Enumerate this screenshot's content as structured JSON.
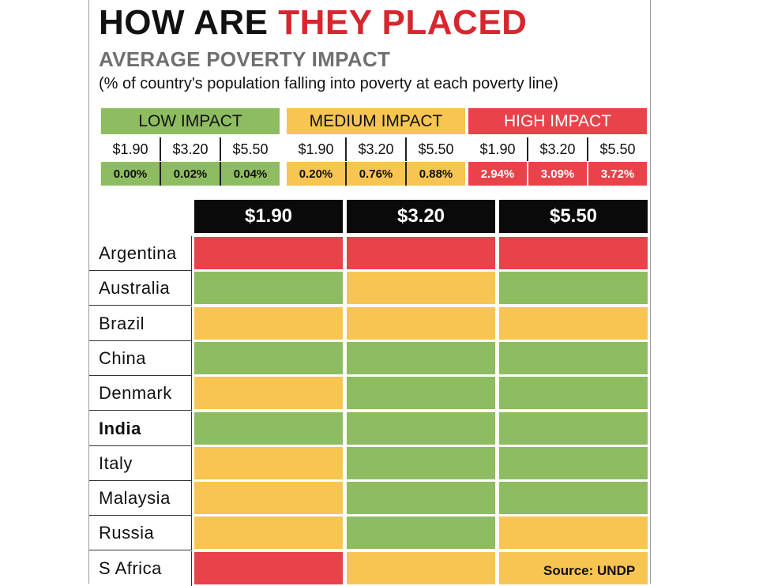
{
  "header": {
    "title_part1": "HOW ARE",
    "title_part2": "THEY PLACED",
    "subtitle": "AVERAGE POVERTY IMPACT",
    "note": "(% of country's population falling into poverty at each poverty line)"
  },
  "colors": {
    "low": "#8ebc61",
    "medium": "#f8c452",
    "high": "#e9424a",
    "header_bg": "#0a0a0a"
  },
  "legend": [
    {
      "label": "LOW IMPACT",
      "level": "low",
      "lines": [
        "$1.90",
        "$3.20",
        "$5.50"
      ],
      "values": [
        "0.00%",
        "0.02%",
        "0.04%"
      ]
    },
    {
      "label": "MEDIUM IMPACT",
      "level": "medium",
      "lines": [
        "$1.90",
        "$3.20",
        "$5.50"
      ],
      "values": [
        "0.20%",
        "0.76%",
        "0.88%"
      ]
    },
    {
      "label": "HIGH IMPACT",
      "level": "high",
      "lines": [
        "$1.90",
        "$3.20",
        "$5.50"
      ],
      "values": [
        "2.94%",
        "3.09%",
        "3.72%"
      ]
    }
  ],
  "chart_data": {
    "type": "heatmap",
    "columns": [
      "$1.90",
      "$3.20",
      "$5.50"
    ],
    "rows": [
      {
        "country": "Argentina",
        "levels": [
          "high",
          "high",
          "high"
        ]
      },
      {
        "country": "Australia",
        "levels": [
          "low",
          "medium",
          "low"
        ]
      },
      {
        "country": "Brazil",
        "levels": [
          "medium",
          "medium",
          "medium"
        ]
      },
      {
        "country": "China",
        "levels": [
          "low",
          "low",
          "low"
        ]
      },
      {
        "country": "Denmark",
        "levels": [
          "medium",
          "low",
          "low"
        ]
      },
      {
        "country": "India",
        "levels": [
          "low",
          "low",
          "low"
        ],
        "bold": true
      },
      {
        "country": "Italy",
        "levels": [
          "medium",
          "low",
          "low"
        ]
      },
      {
        "country": "Malaysia",
        "levels": [
          "medium",
          "low",
          "low"
        ]
      },
      {
        "country": "Russia",
        "levels": [
          "medium",
          "low",
          "medium"
        ]
      },
      {
        "country": "S Africa",
        "levels": [
          "high",
          "medium",
          "medium"
        ]
      }
    ]
  },
  "source": "Source: UNDP"
}
